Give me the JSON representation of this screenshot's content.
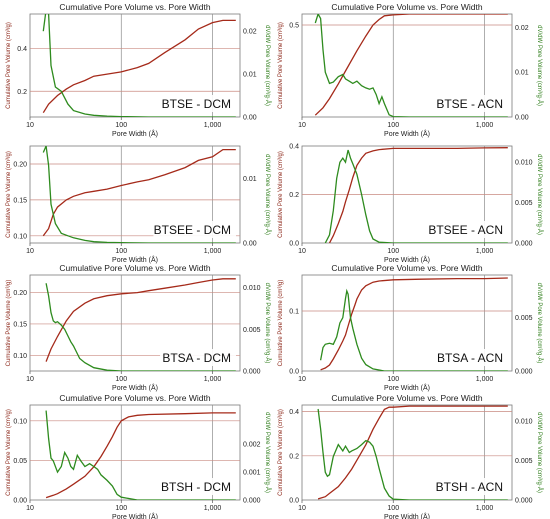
{
  "chart_data": [
    {
      "type": "line",
      "title": "Cumulative Pore Volume vs. Pore Width",
      "label": "BTSE - DCM",
      "xlabel": "Pore Width (Å)",
      "ylabel": "Cumulative Pore Volume (cm³/g)",
      "y2label": "dV/dW Pore Volume (cm³/g·Å)",
      "xscale": "log",
      "xlim": [
        10,
        2000
      ],
      "ylim": [
        0.08,
        0.56
      ],
      "y2lim": [
        0,
        0.024
      ],
      "xticks": [
        10,
        100,
        1000
      ],
      "xticklabels": [
        "10",
        "100",
        "1,000"
      ],
      "yticks": [
        0.2,
        0.4
      ],
      "yticklabels": [
        "0.2",
        "0.4"
      ],
      "y2ticks": [
        0,
        0.01,
        0.02
      ],
      "y2ticklabels": [
        "0.00",
        "0.01",
        "0.02"
      ],
      "series": [
        {
          "axis": "left",
          "color": "#a52a1a",
          "x": [
            14,
            16,
            20,
            25,
            30,
            40,
            50,
            70,
            100,
            150,
            200,
            300,
            500,
            700,
            1000,
            1300,
            1800
          ],
          "y": [
            0.1,
            0.14,
            0.18,
            0.21,
            0.23,
            0.25,
            0.27,
            0.28,
            0.29,
            0.31,
            0.33,
            0.38,
            0.44,
            0.49,
            0.52,
            0.53,
            0.53
          ]
        },
        {
          "axis": "right",
          "color": "#2e8b1e",
          "x": [
            14,
            15,
            16,
            17,
            19,
            22,
            26,
            30,
            40,
            50,
            70,
            100,
            200,
            500,
            1000,
            1800
          ],
          "y": [
            0.02,
            0.025,
            0.024,
            0.012,
            0.007,
            0.006,
            0.003,
            0.0015,
            0.0007,
            0.0004,
            0.0002,
            0.0001,
            0,
            0,
            0,
            0
          ]
        }
      ]
    },
    {
      "type": "line",
      "title": "Cumulative Pore Volume vs. Pore Width",
      "label": "BTSE - ACN",
      "xlabel": "Pore Width (Å)",
      "ylabel": "Cumulative Pore Volume (cm³/g)",
      "y2label": "dV/dW Pore Volume (cm³/g·Å)",
      "xscale": "log",
      "xlim": [
        10,
        2000
      ],
      "ylim": [
        0,
        0.56
      ],
      "y2lim": [
        0,
        0.023
      ],
      "xticks": [
        10,
        100,
        1000
      ],
      "xticklabels": [
        "10",
        "100",
        "1,000"
      ],
      "yticks": [
        0.5
      ],
      "yticklabels": [
        "0.5"
      ],
      "y2ticks": [
        0,
        0.01,
        0.02
      ],
      "y2ticklabels": [
        "0.00",
        "0.01",
        "0.02"
      ],
      "series": [
        {
          "axis": "left",
          "color": "#a52a1a",
          "x": [
            14,
            17,
            20,
            25,
            30,
            40,
            50,
            60,
            70,
            80,
            100,
            150,
            200,
            500,
            1000,
            1800
          ],
          "y": [
            0.01,
            0.05,
            0.1,
            0.18,
            0.25,
            0.36,
            0.44,
            0.5,
            0.53,
            0.55,
            0.555,
            0.56,
            0.56,
            0.56,
            0.56,
            0.56
          ]
        },
        {
          "axis": "right",
          "color": "#2e8b1e",
          "x": [
            14,
            15,
            16,
            17,
            18,
            20,
            22,
            25,
            28,
            30,
            33,
            36,
            40,
            45,
            50,
            55,
            60,
            65,
            70,
            75,
            80,
            90,
            100,
            150,
            200,
            1000,
            1800
          ],
          "y": [
            0.021,
            0.023,
            0.022,
            0.015,
            0.01,
            0.0075,
            0.0078,
            0.009,
            0.0095,
            0.0085,
            0.008,
            0.0075,
            0.008,
            0.007,
            0.0065,
            0.0062,
            0.0065,
            0.005,
            0.003,
            0.0045,
            0.003,
            0.0005,
            0.0001,
            0,
            0,
            0,
            0
          ]
        }
      ]
    },
    {
      "type": "line",
      "title": "",
      "label": "BTSEE - DCM",
      "xlabel": "Pore Width (Å)",
      "ylabel": "Cumulative Pore Volume (cm³/g)",
      "y2label": "dV/dW Pore Volume (cm³/g·Å)",
      "xscale": "log",
      "xlim": [
        10,
        2000
      ],
      "ylim": [
        0.09,
        0.225
      ],
      "y2lim": [
        0,
        0.015
      ],
      "xticks": [
        10,
        100,
        1000
      ],
      "xticklabels": [
        "10",
        "100",
        "1,000"
      ],
      "yticks": [
        0.1,
        0.15,
        0.2
      ],
      "yticklabels": [
        "0.10",
        "0.15",
        "0.20"
      ],
      "y2ticks": [
        0,
        0.01
      ],
      "y2ticklabels": [
        "0.00",
        "0.01"
      ],
      "series": [
        {
          "axis": "left",
          "color": "#a52a1a",
          "x": [
            14,
            16,
            18,
            20,
            25,
            30,
            40,
            50,
            70,
            100,
            150,
            200,
            300,
            500,
            700,
            1000,
            1300,
            1800
          ],
          "y": [
            0.1,
            0.11,
            0.13,
            0.14,
            0.15,
            0.155,
            0.16,
            0.162,
            0.165,
            0.17,
            0.175,
            0.178,
            0.185,
            0.195,
            0.205,
            0.21,
            0.22,
            0.22
          ]
        },
        {
          "axis": "right",
          "color": "#2e8b1e",
          "x": [
            14,
            15,
            16,
            17,
            19,
            22,
            25,
            30,
            40,
            50,
            70,
            100,
            200,
            1000,
            1800
          ],
          "y": [
            0.014,
            0.015,
            0.012,
            0.006,
            0.003,
            0.0015,
            0.0012,
            0.0008,
            0.0004,
            0.0002,
            0.0001,
            5e-05,
            0,
            0,
            0
          ]
        }
      ]
    },
    {
      "type": "line",
      "title": "",
      "label": "BTSEE - ACN",
      "xlabel": "Pore Width (Å)",
      "ylabel": "Cumulative Pore Volume (cm³/g)",
      "y2label": "dV/dW Pore Volume (cm³/g·Å)",
      "xscale": "log",
      "xlim": [
        10,
        2000
      ],
      "ylim": [
        0,
        0.4
      ],
      "y2lim": [
        0,
        0.012
      ],
      "xticks": [
        10,
        100,
        1000
      ],
      "xticklabels": [
        "10",
        "100",
        "1,000"
      ],
      "yticks": [
        0,
        0.2,
        0.4
      ],
      "yticklabels": [
        "0.0",
        "0.2",
        "0.4"
      ],
      "y2ticks": [
        0,
        0.005,
        0.01
      ],
      "y2ticklabels": [
        "0.000",
        "0.005",
        "0.010"
      ],
      "series": [
        {
          "axis": "left",
          "color": "#a52a1a",
          "x": [
            20,
            22,
            25,
            28,
            30,
            33,
            36,
            40,
            45,
            50,
            60,
            70,
            100,
            200,
            500,
            1000,
            1800
          ],
          "y": [
            0,
            0.03,
            0.08,
            0.13,
            0.17,
            0.22,
            0.27,
            0.32,
            0.35,
            0.37,
            0.38,
            0.385,
            0.39,
            0.39,
            0.39,
            0.392,
            0.393
          ]
        },
        {
          "axis": "right",
          "color": "#2e8b1e",
          "x": [
            18,
            20,
            22,
            24,
            26,
            28,
            30,
            32,
            34,
            36,
            40,
            45,
            50,
            55,
            60,
            70,
            100,
            200,
            1000,
            1800
          ],
          "y": [
            0,
            0.001,
            0.004,
            0.008,
            0.01,
            0.0105,
            0.01,
            0.0115,
            0.0105,
            0.0098,
            0.0085,
            0.006,
            0.0035,
            0.0015,
            0.0005,
            0.0001,
            0,
            0,
            0,
            0
          ]
        }
      ]
    },
    {
      "type": "line",
      "title": "Cumulative Pore Volume vs. Pore Width",
      "label": "BTSA - DCM",
      "xlabel": "Pore Width (Å)",
      "ylabel": "Cumulative Pore Volume (cm³/g)",
      "y2label": "dV/dW Pore Volume (cm³/g·Å)",
      "xscale": "log",
      "xlim": [
        10,
        2000
      ],
      "ylim": [
        0.075,
        0.228
      ],
      "y2lim": [
        0,
        0.0115
      ],
      "xticks": [
        10,
        100,
        1000
      ],
      "xticklabels": [
        "10",
        "100",
        "1,000"
      ],
      "yticks": [
        0.1,
        0.15,
        0.2
      ],
      "yticklabels": [
        "0.10",
        "0.15",
        "0.20"
      ],
      "y2ticks": [
        0,
        0.005,
        0.01
      ],
      "y2ticklabels": [
        "0.000",
        "0.005",
        "0.010"
      ],
      "series": [
        {
          "axis": "left",
          "color": "#a52a1a",
          "x": [
            15,
            17,
            20,
            25,
            30,
            40,
            50,
            70,
            100,
            150,
            200,
            300,
            500,
            700,
            1000,
            1300,
            1800
          ],
          "y": [
            0.09,
            0.11,
            0.13,
            0.155,
            0.17,
            0.183,
            0.19,
            0.195,
            0.198,
            0.2,
            0.203,
            0.207,
            0.212,
            0.216,
            0.22,
            0.222,
            0.222
          ]
        },
        {
          "axis": "right",
          "color": "#2e8b1e",
          "x": [
            15,
            16,
            17,
            18,
            19,
            20,
            22,
            24,
            26,
            28,
            30,
            35,
            40,
            50,
            70,
            100,
            200,
            1000,
            1800
          ],
          "y": [
            0.0105,
            0.009,
            0.007,
            0.006,
            0.0058,
            0.0059,
            0.0055,
            0.005,
            0.0042,
            0.0035,
            0.003,
            0.0015,
            0.001,
            0.0004,
            0.0001,
            0,
            0,
            0,
            0
          ]
        }
      ]
    },
    {
      "type": "line",
      "title": "Cumulative Pore Volume vs. Pore Width",
      "label": "BTSA - ACN",
      "xlabel": "Pore Width (Å)",
      "ylabel": "Cumulative Pore Volume (cm³/g)",
      "y2label": "dV/dW Pore Volume (cm³/g·Å)",
      "xscale": "log",
      "xlim": [
        10,
        2000
      ],
      "ylim": [
        0,
        0.16
      ],
      "y2lim": [
        0,
        0.009
      ],
      "xticks": [
        10,
        100,
        1000
      ],
      "xticklabels": [
        "10",
        "100",
        "1,000"
      ],
      "yticks": [
        0,
        0.1
      ],
      "yticklabels": [
        "0.0",
        "0.1"
      ],
      "y2ticks": [
        0,
        0.005
      ],
      "y2ticklabels": [
        "0.000",
        "0.005"
      ],
      "series": [
        {
          "axis": "left",
          "color": "#a52a1a",
          "x": [
            16,
            18,
            20,
            22,
            25,
            28,
            30,
            32,
            35,
            38,
            40,
            45,
            50,
            60,
            70,
            100,
            200,
            500,
            1000,
            1800
          ],
          "y": [
            0.002,
            0.005,
            0.01,
            0.02,
            0.035,
            0.05,
            0.06,
            0.075,
            0.095,
            0.11,
            0.12,
            0.135,
            0.142,
            0.148,
            0.15,
            0.152,
            0.153,
            0.154,
            0.154,
            0.155
          ]
        },
        {
          "axis": "right",
          "color": "#2e8b1e",
          "x": [
            16,
            17,
            18,
            20,
            22,
            24,
            26,
            28,
            30,
            31,
            32,
            34,
            36,
            40,
            45,
            50,
            60,
            80,
            100,
            1000,
            1800
          ],
          "y": [
            0.001,
            0.0022,
            0.0025,
            0.0026,
            0.0025,
            0.0032,
            0.0045,
            0.005,
            0.0068,
            0.0075,
            0.0072,
            0.005,
            0.004,
            0.0025,
            0.0012,
            0.0006,
            0.0002,
            0,
            0,
            0,
            0
          ]
        }
      ]
    },
    {
      "type": "line",
      "title": "Cumulative Pore Volume vs. Pore Width",
      "label": "BTSH - DCM",
      "xlabel": "Pore Width (Å)",
      "ylabel": "Cumulative Pore Volume (cm³/g)",
      "y2label": "dV/dW Pore Volume (cm³/g·Å)",
      "xscale": "log",
      "xlim": [
        10,
        2000
      ],
      "ylim": [
        0,
        0.12
      ],
      "y2lim": [
        0,
        0.0034
      ],
      "xticks": [
        10,
        100,
        1000
      ],
      "xticklabels": [
        "10",
        "100",
        "1,000"
      ],
      "yticks": [
        0,
        0.05,
        0.1
      ],
      "yticklabels": [
        "0.00",
        "0.05",
        "0.10"
      ],
      "y2ticks": [
        0,
        0.001,
        0.002
      ],
      "y2ticklabels": [
        "0.000",
        "0.001",
        "0.002"
      ],
      "series": [
        {
          "axis": "left",
          "color": "#a52a1a",
          "x": [
            15,
            18,
            20,
            25,
            30,
            40,
            50,
            60,
            70,
            80,
            90,
            100,
            120,
            150,
            200,
            500,
            1000,
            1800
          ],
          "y": [
            0.003,
            0.006,
            0.008,
            0.014,
            0.02,
            0.03,
            0.042,
            0.055,
            0.068,
            0.08,
            0.092,
            0.1,
            0.105,
            0.107,
            0.108,
            0.109,
            0.11,
            0.11
          ]
        },
        {
          "axis": "right",
          "color": "#2e8b1e",
          "x": [
            15,
            16,
            17,
            18,
            20,
            22,
            24,
            26,
            28,
            30,
            33,
            36,
            40,
            45,
            50,
            55,
            60,
            70,
            80,
            90,
            100,
            150,
            200,
            1000,
            1800
          ],
          "y": [
            0.0032,
            0.0022,
            0.0015,
            0.0014,
            0.001,
            0.0012,
            0.0017,
            0.0015,
            0.0012,
            0.0011,
            0.0016,
            0.0014,
            0.0012,
            0.0013,
            0.0012,
            0.0011,
            0.0009,
            0.0007,
            0.0005,
            0.0002,
            0.0001,
            0,
            0,
            0,
            0
          ]
        }
      ]
    },
    {
      "type": "line",
      "title": "Cumulative Pore Volume vs. Pore Width",
      "label": "BTSH - ACN",
      "xlabel": "Pore Width (Å)",
      "ylabel": "Cumulative Pore Volume (cm³/g)",
      "y2label": "dV/dW Pore Volume (cm³/g·Å)",
      "xscale": "log",
      "xlim": [
        10,
        2000
      ],
      "ylim": [
        0,
        0.43
      ],
      "y2lim": [
        0,
        0.012
      ],
      "xticks": [
        10,
        100,
        1000
      ],
      "xticklabels": [
        "10",
        "100",
        "1,000"
      ],
      "yticks": [
        0,
        0.2,
        0.4
      ],
      "yticklabels": [
        "0.0",
        "0.2",
        "0.4"
      ],
      "y2ticks": [
        0,
        0.005,
        0.01
      ],
      "y2ticklabels": [
        "0.000",
        "0.005",
        "0.010"
      ],
      "series": [
        {
          "axis": "left",
          "color": "#a52a1a",
          "x": [
            15,
            18,
            20,
            25,
            30,
            35,
            40,
            50,
            60,
            70,
            80,
            90,
            100,
            150,
            200,
            500,
            1000,
            1800
          ],
          "y": [
            0.005,
            0.015,
            0.03,
            0.06,
            0.1,
            0.14,
            0.18,
            0.25,
            0.32,
            0.37,
            0.41,
            0.42,
            0.42,
            0.425,
            0.425,
            0.425,
            0.425,
            0.425
          ]
        },
        {
          "axis": "right",
          "color": "#2e8b1e",
          "x": [
            15,
            16,
            17,
            18,
            19,
            20,
            22,
            25,
            28,
            30,
            33,
            35,
            40,
            45,
            50,
            55,
            60,
            65,
            70,
            80,
            90,
            100,
            150,
            200,
            1000,
            1800
          ],
          "y": [
            0.0115,
            0.009,
            0.006,
            0.0035,
            0.003,
            0.0032,
            0.0055,
            0.007,
            0.0062,
            0.0068,
            0.006,
            0.0062,
            0.0065,
            0.007,
            0.0075,
            0.0073,
            0.0068,
            0.0055,
            0.004,
            0.0015,
            0.0005,
            0.0001,
            0,
            0,
            0,
            0
          ]
        }
      ]
    }
  ]
}
